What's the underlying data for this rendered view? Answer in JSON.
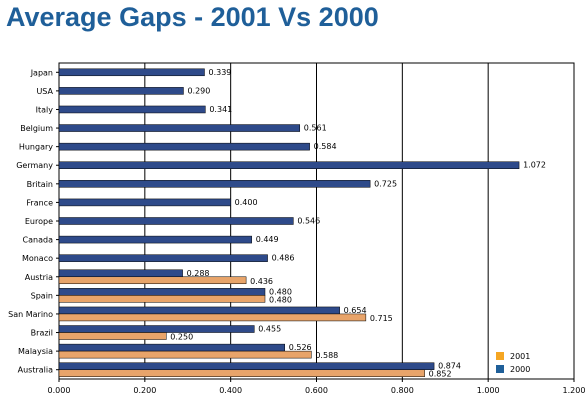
{
  "colors": {
    "series_2000": "#2e4a8a",
    "series_2001": "#e8a46a",
    "legend_2001": "#f5a623",
    "legend_2000": "#1f5f99",
    "title": "#1f5f99"
  },
  "chart_data": {
    "type": "bar",
    "orientation": "horizontal",
    "title": "Average Gaps - 2001 Vs 2000",
    "xlabel": "",
    "ylabel": "",
    "xlim": [
      0,
      1.2
    ],
    "x_ticks": [
      "0.000",
      "0.200",
      "0.400",
      "0.600",
      "0.800",
      "1.000",
      "1.200"
    ],
    "grid": "vertical",
    "legend_position": "bottom-right",
    "categories": [
      "Japan",
      "USA",
      "Italy",
      "Belgium",
      "Hungary",
      "Germany",
      "Britain",
      "France",
      "Europe",
      "Canada",
      "Monaco",
      "Austria",
      "Spain",
      "San Marino",
      "Brazil",
      "Malaysia",
      "Australia"
    ],
    "series": [
      {
        "name": "2000",
        "values": [
          0.339,
          0.29,
          0.341,
          0.561,
          0.584,
          1.072,
          0.725,
          0.4,
          0.546,
          0.449,
          0.486,
          0.288,
          0.48,
          0.654,
          0.455,
          0.526,
          0.874
        ],
        "labels": [
          "0.339",
          "0.290",
          "0.341",
          "0.561",
          "0.584",
          "1.072",
          "0.725",
          "0.400",
          "0.546",
          "0.449",
          "0.486",
          "0.288",
          "0.480",
          "0.654",
          "0.455",
          "0.526",
          "0.874"
        ]
      },
      {
        "name": "2001",
        "values": [
          null,
          null,
          null,
          null,
          null,
          null,
          null,
          null,
          null,
          null,
          null,
          0.436,
          0.48,
          0.715,
          0.25,
          0.588,
          0.852
        ],
        "labels": [
          null,
          null,
          null,
          null,
          null,
          null,
          null,
          null,
          null,
          null,
          null,
          "0.436",
          "0.480",
          "0.715",
          "0.250",
          "0.588",
          "0.852"
        ]
      }
    ]
  }
}
